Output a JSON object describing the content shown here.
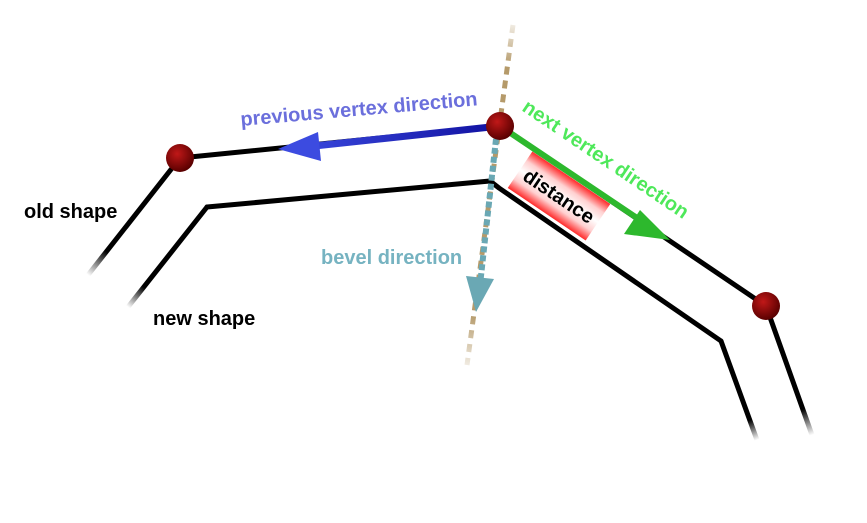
{
  "labels": {
    "old_shape": "old shape",
    "new_shape": "new shape",
    "previous_vertex_direction": "previous vertex direction",
    "next_vertex_direction": "next vertex direction",
    "bevel_direction": "bevel direction",
    "distance": "distance"
  },
  "colors": {
    "shape_line": "#000000",
    "vertex": "#8b0000",
    "previous_arrow": "#1515b0",
    "next_arrow": "#2db82d",
    "bevel_arrow": "#6aa8b4",
    "bisector": "#b59a6a",
    "distance_fill": "#ff3b3b"
  }
}
